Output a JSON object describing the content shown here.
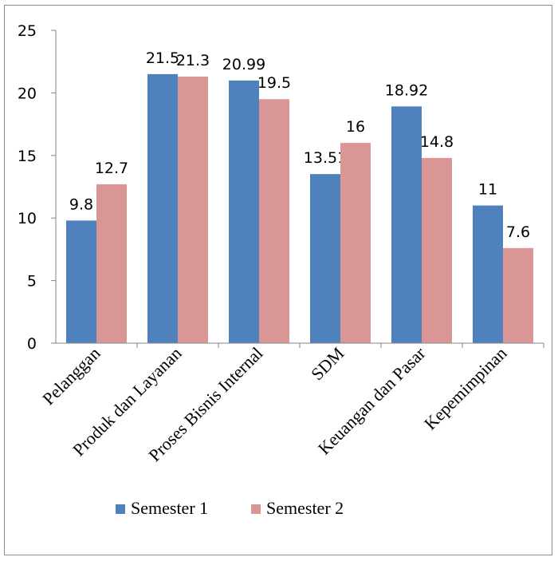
{
  "chart_data": {
    "type": "bar",
    "categories": [
      "Pelanggan",
      "Produk dan Layanan",
      "Proses Bisnis Internal",
      "SDM",
      "Keuangan dan Pasar",
      "Kepemimpinan"
    ],
    "series": [
      {
        "name": "Semester 1",
        "color": "#4f81bd",
        "values": [
          9.8,
          21.5,
          20.99,
          13.51,
          18.92,
          11
        ],
        "labels": [
          "9.8",
          "21.5",
          "20.99",
          "13.51",
          "18.92",
          "11"
        ]
      },
      {
        "name": "Semester 2",
        "color": "#d99694",
        "values": [
          12.7,
          21.3,
          19.5,
          16,
          14.8,
          7.6
        ],
        "labels": [
          "12.7",
          "21.3",
          "19.5",
          "16",
          "14.8",
          "7.6"
        ]
      }
    ],
    "ylim": [
      0,
      25
    ],
    "yticks": [
      0,
      5,
      10,
      15,
      20,
      25
    ],
    "grid": false,
    "legend_position": "bottom"
  }
}
